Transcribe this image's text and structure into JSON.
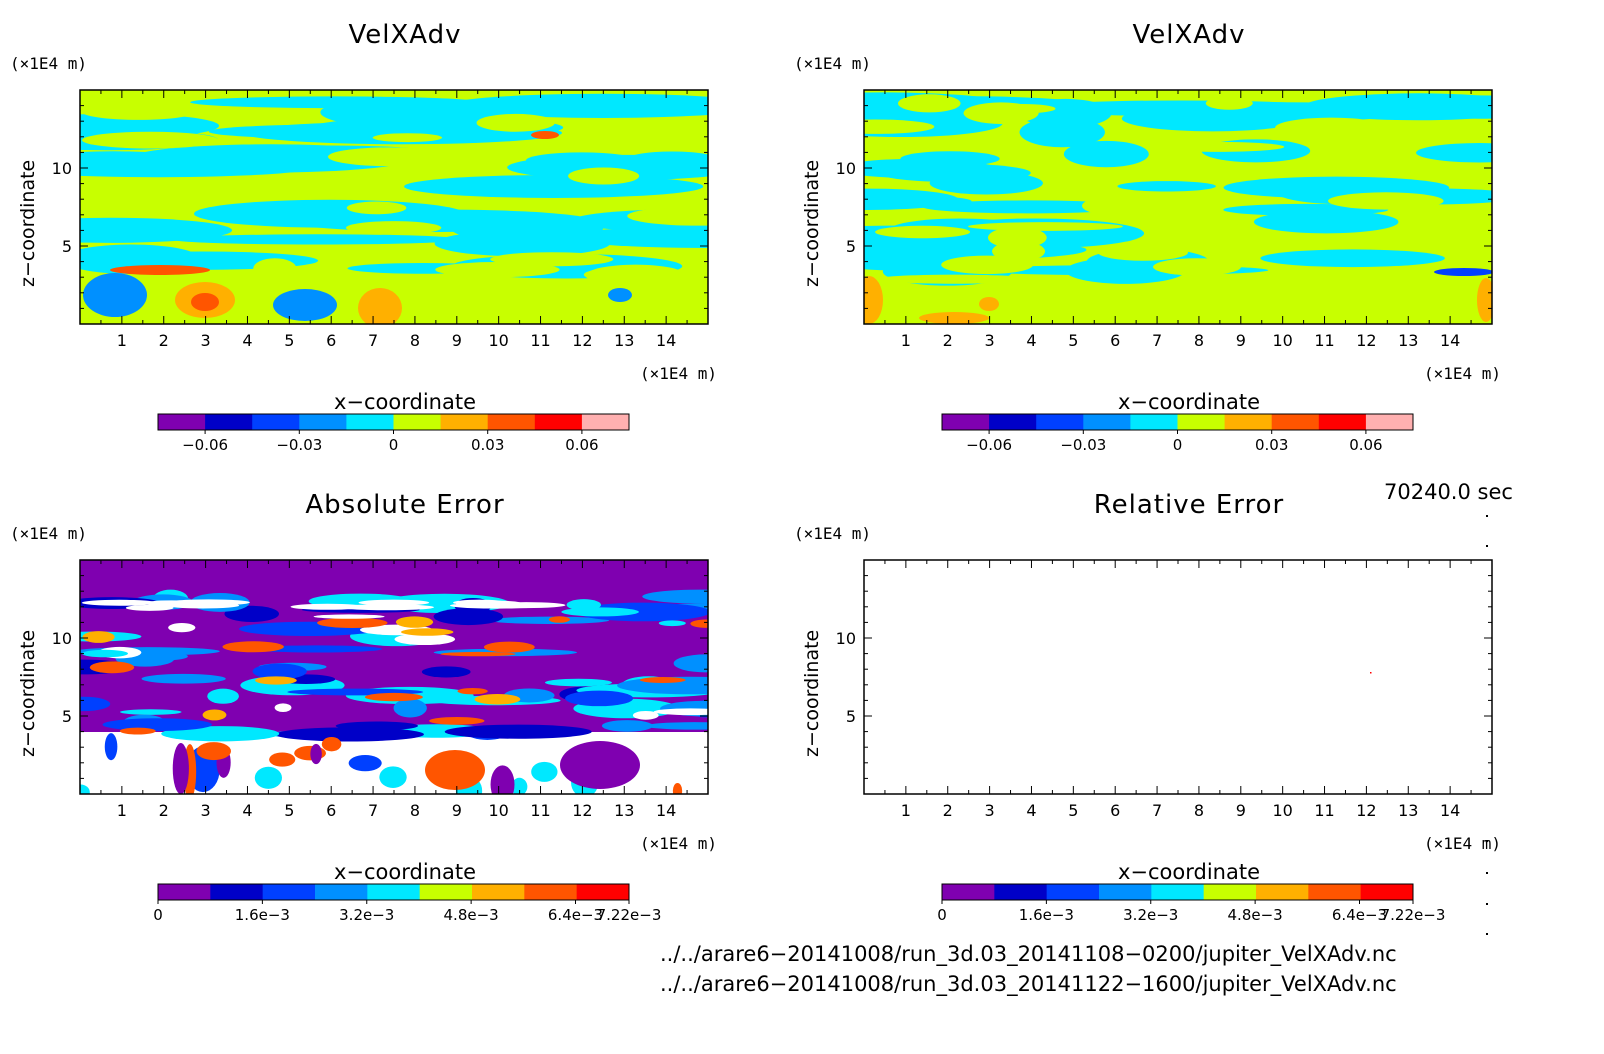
{
  "chart_data": [
    {
      "type": "heatmap",
      "title": "VelXAdv",
      "xlabel": "x−coordinate",
      "ylabel": "z−coordinate",
      "x_unit": "(×1E4 m)",
      "y_unit": "(×1E4 m)",
      "xlim": [
        0,
        15
      ],
      "ylim": [
        0,
        15
      ],
      "x_ticks": [
        "1",
        "2",
        "3",
        "4",
        "5",
        "6",
        "7",
        "8",
        "9",
        "10",
        "11",
        "12",
        "13",
        "14"
      ],
      "y_ticks": [
        "5",
        "10"
      ],
      "colorbar": {
        "colors": [
          "#7f00b0",
          "#0000c8",
          "#0040ff",
          "#0090ff",
          "#00e8ff",
          "#c8ff00",
          "#ffb000",
          "#ff5500",
          "#ff0000",
          "#ffb0b0"
        ],
        "tick_labels": [
          "−0.06",
          "−0.03",
          "0",
          "0.03",
          "0.06"
        ],
        "tick_values": [
          -0.06,
          -0.03,
          0,
          0.03,
          0.06
        ],
        "range": [
          -0.075,
          0.075
        ]
      }
    },
    {
      "type": "heatmap",
      "title": "VelXAdv",
      "xlabel": "x−coordinate",
      "ylabel": "z−coordinate",
      "x_unit": "(×1E4 m)",
      "y_unit": "(×1E4 m)",
      "xlim": [
        0,
        15
      ],
      "ylim": [
        0,
        15
      ],
      "x_ticks": [
        "1",
        "2",
        "3",
        "4",
        "5",
        "6",
        "7",
        "8",
        "9",
        "10",
        "11",
        "12",
        "13",
        "14"
      ],
      "y_ticks": [
        "5",
        "10"
      ],
      "colorbar": {
        "colors": [
          "#7f00b0",
          "#0000c8",
          "#0040ff",
          "#0090ff",
          "#00e8ff",
          "#c8ff00",
          "#ffb000",
          "#ff5500",
          "#ff0000",
          "#ffb0b0"
        ],
        "tick_labels": [
          "−0.06",
          "−0.03",
          "0",
          "0.03",
          "0.06"
        ],
        "tick_values": [
          -0.06,
          -0.03,
          0,
          0.03,
          0.06
        ],
        "range": [
          -0.075,
          0.075
        ]
      }
    },
    {
      "type": "heatmap",
      "title": "Absolute Error",
      "xlabel": "x−coordinate",
      "ylabel": "z−coordinate",
      "x_unit": "(×1E4 m)",
      "y_unit": "(×1E4 m)",
      "xlim": [
        0,
        15
      ],
      "ylim": [
        0,
        15
      ],
      "x_ticks": [
        "1",
        "2",
        "3",
        "4",
        "5",
        "6",
        "7",
        "8",
        "9",
        "10",
        "11",
        "12",
        "13",
        "14"
      ],
      "y_ticks": [
        "5",
        "10"
      ],
      "colorbar": {
        "colors": [
          "#7f00b0",
          "#0000c8",
          "#0040ff",
          "#0090ff",
          "#00e8ff",
          "#c8ff00",
          "#ffb000",
          "#ff5500",
          "#ff0000"
        ],
        "tick_labels": [
          "0",
          "1.6e−3",
          "3.2e−3",
          "4.8e−3",
          "6.4e−3",
          "7.22e−3"
        ],
        "tick_values": [
          0,
          0.0016,
          0.0032,
          0.0048,
          0.0064,
          0.00722
        ],
        "range": [
          0,
          0.00722
        ]
      }
    },
    {
      "type": "heatmap",
      "title": "Relative Error",
      "xlabel": "x−coordinate",
      "ylabel": "z−coordinate",
      "x_unit": "(×1E4 m)",
      "y_unit": "(×1E4 m)",
      "xlim": [
        0,
        15
      ],
      "ylim": [
        0,
        15
      ],
      "x_ticks": [
        "1",
        "2",
        "3",
        "4",
        "5",
        "6",
        "7",
        "8",
        "9",
        "10",
        "11",
        "12",
        "13",
        "14"
      ],
      "y_ticks": [
        "5",
        "10"
      ],
      "colorbar": {
        "colors": [
          "#7f00b0",
          "#0000c8",
          "#0040ff",
          "#0090ff",
          "#00e8ff",
          "#c8ff00",
          "#ffb000",
          "#ff5500",
          "#ff0000"
        ],
        "tick_labels": [
          "0",
          "1.6e−3",
          "3.2e−3",
          "4.8e−3",
          "6.4e−3",
          "7.22e−3"
        ],
        "tick_values": [
          0,
          0.0016,
          0.0032,
          0.0048,
          0.0064,
          0.00722
        ],
        "range": [
          0,
          0.00722
        ]
      }
    }
  ],
  "time_label": "70240.0 sec",
  "file_paths": [
    "../../arare6−20141008/run_3d.03_20141108−0200/jupiter_VelXAdv.nc",
    "../../arare6−20141008/run_3d.03_20141122−1600/jupiter_VelXAdv.nc"
  ]
}
